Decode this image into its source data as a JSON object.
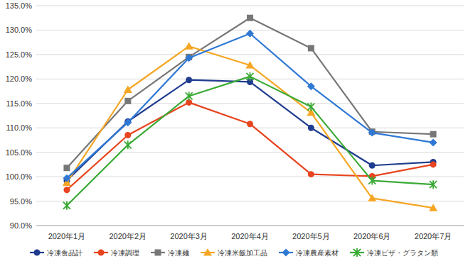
{
  "chart_data": {
    "type": "line",
    "categories": [
      "2020年1月",
      "2020年2月",
      "2020年3月",
      "2020年4月",
      "2020年5月",
      "2020年6月",
      "2020年7月"
    ],
    "ylim": [
      90,
      135
    ],
    "yticks": [
      {
        "value": 90,
        "label": "90.0%"
      },
      {
        "value": 95,
        "label": "95.0%"
      },
      {
        "value": 100,
        "label": "100.0%"
      },
      {
        "value": 105,
        "label": "105.0%"
      },
      {
        "value": 110,
        "label": "110.0%"
      },
      {
        "value": 115,
        "label": "115.0%"
      },
      {
        "value": 120,
        "label": "120.0%"
      },
      {
        "value": 125,
        "label": "125.0%"
      },
      {
        "value": 130,
        "label": "130.0%"
      },
      {
        "value": 135,
        "label": "135.0%"
      }
    ],
    "grid": true,
    "legend": "bottom",
    "series": [
      {
        "name": "冷凍食品計",
        "color": "#1f3c8f",
        "marker": "circle",
        "values": [
          99.2,
          111.3,
          119.8,
          119.4,
          110.0,
          102.3,
          103.0
        ]
      },
      {
        "name": "冷凍調理",
        "color": "#e8441f",
        "marker": "circle",
        "values": [
          97.3,
          108.5,
          115.2,
          110.8,
          100.5,
          100.1,
          102.5
        ]
      },
      {
        "name": "冷凍麺",
        "color": "#777777",
        "marker": "square",
        "values": [
          101.8,
          115.5,
          124.5,
          132.5,
          126.3,
          109.2,
          108.7
        ]
      },
      {
        "name": "冷凍米飯加工品",
        "color": "#f5a623",
        "marker": "triangle",
        "values": [
          98.8,
          117.8,
          126.7,
          122.8,
          113.1,
          95.6,
          93.6
        ]
      },
      {
        "name": "冷凍農産素材",
        "color": "#2f78d4",
        "marker": "diamond",
        "values": [
          99.7,
          111.1,
          124.3,
          129.3,
          118.5,
          109.0,
          107.0
        ]
      },
      {
        "name": "冷凍ピザ・グラタン類",
        "color": "#3aaa35",
        "marker": "x",
        "values": [
          94.1,
          106.5,
          116.5,
          120.5,
          114.3,
          99.2,
          98.4
        ]
      }
    ]
  }
}
